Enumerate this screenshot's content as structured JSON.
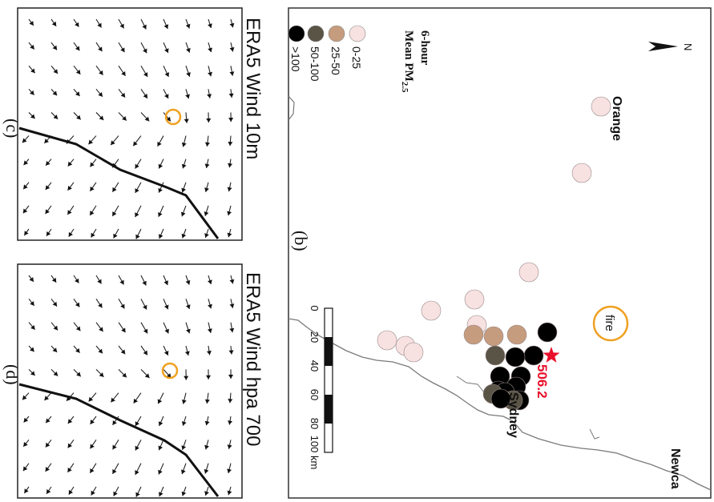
{
  "panels": {
    "c": {
      "letter": "(c)",
      "title": "ERA5 Wind 10m"
    },
    "d": {
      "letter": "(d)",
      "title": "ERA5 Wind hpa 700"
    },
    "b": {
      "letter": "(b)"
    }
  },
  "map": {
    "north_label": "N",
    "legend": {
      "title_line1": "6-hour",
      "title_line2": "Mean PM",
      "title_sub": "2.5",
      "classes": [
        {
          "label": "0-25",
          "color": "#f7e1e1"
        },
        {
          "label": "25-50",
          "color": "#c59c7e"
        },
        {
          "label": "50-100",
          "color": "#5a5446"
        },
        {
          "label": ">100",
          "color": "#000000"
        }
      ]
    },
    "places": {
      "orange": "Orange",
      "sydney": "Sydney",
      "newcastle": "Newca",
      "fire": "fire",
      "max_value": "506.2"
    },
    "scale_bar": {
      "ticks": [
        "0",
        "20",
        "40",
        "60",
        "80",
        "100 km"
      ]
    },
    "colors": {
      "fire_ring": "#f0a020",
      "star": "#e8102a",
      "coast": "#7a7a7a"
    }
  }
}
